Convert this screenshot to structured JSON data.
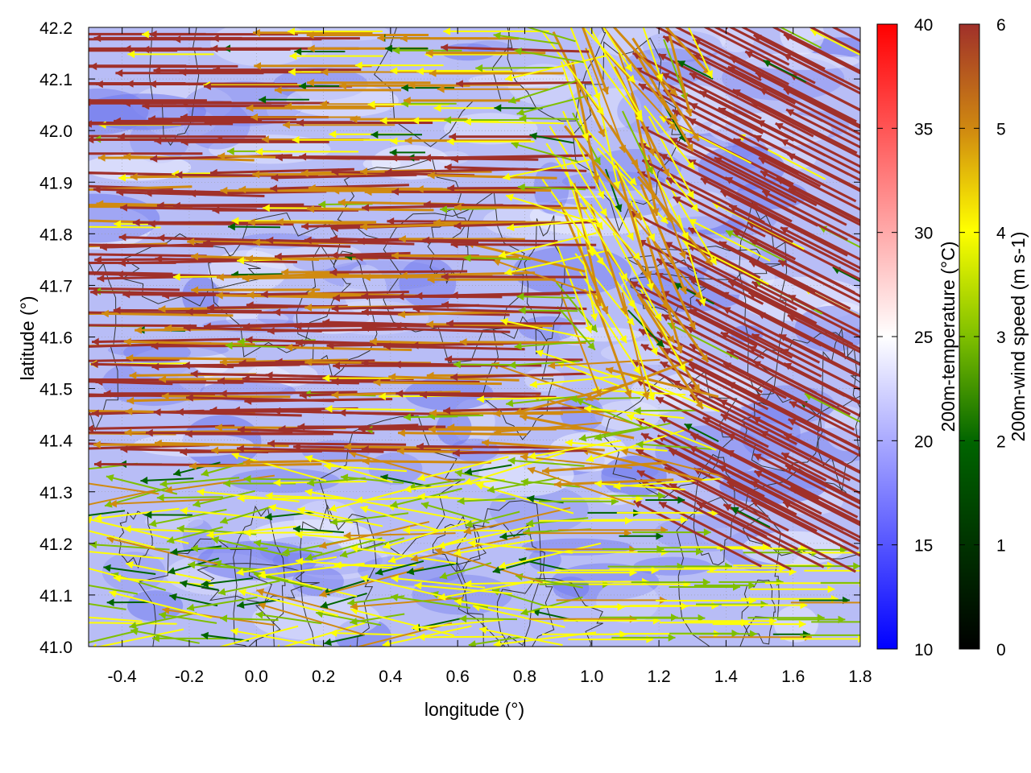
{
  "chart_data": {
    "type": "vector-field",
    "xlabel": "longitude (°)",
    "ylabel": "latitude (°)",
    "xlim": [
      -0.5,
      1.8
    ],
    "ylim": [
      41.0,
      42.2
    ],
    "xticks": [
      "-0.4",
      "-0.2",
      "0.0",
      "0.2",
      "0.4",
      "0.6",
      "0.8",
      "1.0",
      "1.2",
      "1.4",
      "1.6",
      "1.8"
    ],
    "yticks": [
      "41.0",
      "41.1",
      "41.2",
      "41.3",
      "41.4",
      "41.5",
      "41.6",
      "41.7",
      "41.8",
      "41.9",
      "42.0",
      "42.1",
      "42.2"
    ],
    "grid": true,
    "background_field": {
      "name": "200m-temperature (°C)",
      "range": [
        10,
        40
      ],
      "ticks": [
        "10",
        "15",
        "20",
        "25",
        "30",
        "35",
        "40"
      ],
      "colors": [
        "#0000ff",
        "#ffffff",
        "#ff0000"
      ],
      "typical_value": 21
    },
    "vectors": {
      "name": "200m-wind speed (m s-1)",
      "range": [
        0,
        6
      ],
      "ticks": [
        "0",
        "1",
        "2",
        "3",
        "4",
        "5",
        "6"
      ],
      "colors": [
        "#000000",
        "#006400",
        "#7fbf00",
        "#ffff00",
        "#d08a10",
        "#a0302a"
      ],
      "regions": [
        {
          "region": "north-west",
          "speed": 6,
          "direction": "west"
        },
        {
          "region": "north-centre",
          "speed": 3.5,
          "direction": "west"
        },
        {
          "region": "centre-west",
          "speed": 6,
          "direction": "west"
        },
        {
          "region": "south-west",
          "speed": 3,
          "direction": "west"
        },
        {
          "region": "east",
          "speed": 6,
          "direction": "north-west"
        },
        {
          "region": "south-east",
          "speed": 3.5,
          "direction": "east"
        }
      ]
    },
    "contours": "terrain elevation (unlabeled, black lines)"
  }
}
